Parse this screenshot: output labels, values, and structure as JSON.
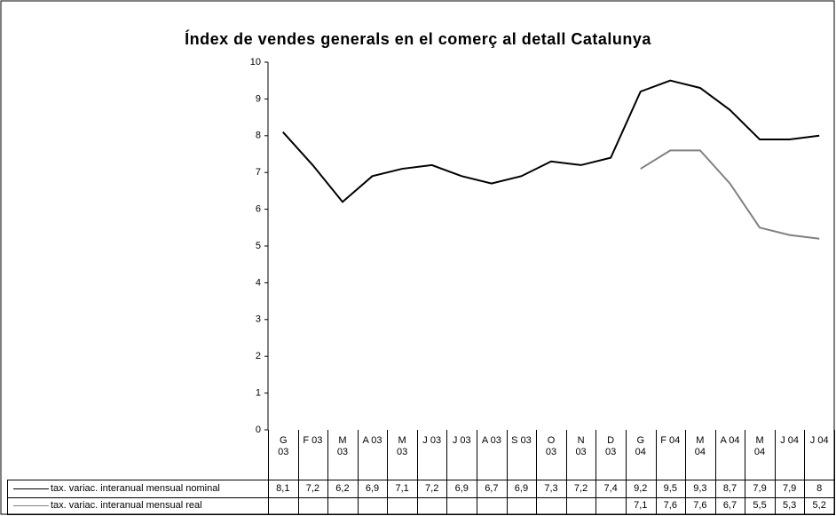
{
  "chart_data": {
    "type": "line",
    "title": "Índex de vendes generals en el comerç al detall Catalunya",
    "categories": [
      "G 03",
      "F 03",
      "M 03",
      "A 03",
      "M 03",
      "J 03",
      "J 03",
      "A 03",
      "S 03",
      "O 03",
      "N 03",
      "D 03",
      "G 04",
      "F 04",
      "M 04",
      "A 04",
      "M 04",
      "J 04",
      "J 04"
    ],
    "series": [
      {
        "name": "tax. variac. interanual mensual nominal",
        "color": "#000000",
        "values": [
          8.1,
          7.2,
          6.2,
          6.9,
          7.1,
          7.2,
          6.9,
          6.7,
          6.9,
          7.3,
          7.2,
          7.4,
          9.2,
          9.5,
          9.3,
          8.7,
          7.9,
          7.9,
          8
        ],
        "value_labels": [
          "8,1",
          "7,2",
          "6,2",
          "6,9",
          "7,1",
          "7,2",
          "6,9",
          "6,7",
          "6,9",
          "7,3",
          "7,2",
          "7,4",
          "9,2",
          "9,5",
          "9,3",
          "8,7",
          "7,9",
          "7,9",
          "8"
        ]
      },
      {
        "name": "tax. variac. interanual mensual real",
        "color": "#808080",
        "values": [
          null,
          null,
          null,
          null,
          null,
          null,
          null,
          null,
          null,
          null,
          null,
          null,
          7.1,
          7.6,
          7.6,
          6.7,
          5.5,
          5.3,
          5.2
        ],
        "value_labels": [
          null,
          null,
          null,
          null,
          null,
          null,
          null,
          null,
          null,
          null,
          null,
          null,
          "7,1",
          "7,6",
          "7,6",
          "6,7",
          "5,5",
          "5,3",
          "5,2"
        ]
      }
    ],
    "ylim": [
      0,
      10
    ],
    "yticks": [
      0,
      1,
      2,
      3,
      4,
      5,
      6,
      7,
      8,
      9,
      10
    ],
    "grid": false
  }
}
